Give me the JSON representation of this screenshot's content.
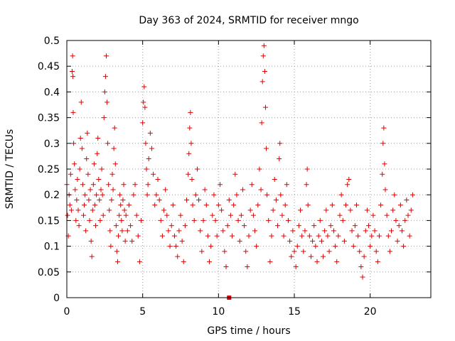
{
  "chart_data": {
    "type": "scatter",
    "title": "Day 363 of 2024, SRMTID for receiver mngo",
    "xlabel": "GPS time / hours",
    "ylabel": "SRMTID / TECUs",
    "xlim": [
      0,
      24
    ],
    "ylim": [
      0,
      0.5
    ],
    "xticks": [
      0,
      5,
      10,
      15,
      20
    ],
    "yticks": [
      0,
      0.05,
      0.1,
      0.15,
      0.2,
      0.25,
      0.3,
      0.35,
      0.4,
      0.45,
      0.5
    ],
    "xtick_labels": [
      "0",
      "5",
      "10",
      "15",
      "20"
    ],
    "ytick_labels": [
      "0",
      "0.05",
      "0.1",
      "0.15",
      "0.2",
      "0.25",
      "0.3",
      "0.35",
      "0.4",
      "0.45",
      "0.5"
    ],
    "grid": true,
    "marker": "plus",
    "color": "#e00000",
    "series": [
      {
        "name": "SRMTID",
        "points": [
          [
            0.0,
            0.22
          ],
          [
            0.05,
            0.16
          ],
          [
            0.1,
            0.12
          ],
          [
            0.15,
            0.2
          ],
          [
            0.2,
            0.18
          ],
          [
            0.25,
            0.24
          ],
          [
            0.3,
            0.17
          ],
          [
            0.35,
            0.44
          ],
          [
            0.38,
            0.47
          ],
          [
            0.4,
            0.43
          ],
          [
            0.42,
            0.36
          ],
          [
            0.45,
            0.3
          ],
          [
            0.5,
            0.26
          ],
          [
            0.55,
            0.21
          ],
          [
            0.6,
            0.15
          ],
          [
            0.65,
            0.19
          ],
          [
            0.7,
            0.23
          ],
          [
            0.75,
            0.17
          ],
          [
            0.8,
            0.14
          ],
          [
            0.85,
            0.25
          ],
          [
            0.9,
            0.31
          ],
          [
            0.95,
            0.38
          ],
          [
            1.0,
            0.29
          ],
          [
            1.05,
            0.22
          ],
          [
            1.1,
            0.16
          ],
          [
            1.15,
            0.18
          ],
          [
            1.2,
            0.2
          ],
          [
            1.25,
            0.13
          ],
          [
            1.3,
            0.27
          ],
          [
            1.35,
            0.32
          ],
          [
            1.4,
            0.24
          ],
          [
            1.45,
            0.19
          ],
          [
            1.5,
            0.15
          ],
          [
            1.55,
            0.21
          ],
          [
            1.6,
            0.11
          ],
          [
            1.65,
            0.08
          ],
          [
            1.7,
            0.17
          ],
          [
            1.75,
            0.22
          ],
          [
            1.8,
            0.26
          ],
          [
            1.85,
            0.18
          ],
          [
            1.9,
            0.14
          ],
          [
            1.95,
            0.2
          ],
          [
            2.0,
            0.28
          ],
          [
            2.05,
            0.31
          ],
          [
            2.1,
            0.23
          ],
          [
            2.15,
            0.19
          ],
          [
            2.2,
            0.15
          ],
          [
            2.25,
            0.21
          ],
          [
            2.3,
            0.25
          ],
          [
            2.35,
            0.2
          ],
          [
            2.4,
            0.16
          ],
          [
            2.45,
            0.35
          ],
          [
            2.5,
            0.4
          ],
          [
            2.55,
            0.43
          ],
          [
            2.6,
            0.47
          ],
          [
            2.65,
            0.38
          ],
          [
            2.7,
            0.3
          ],
          [
            2.75,
            0.22
          ],
          [
            2.8,
            0.17
          ],
          [
            2.85,
            0.13
          ],
          [
            2.9,
            0.1
          ],
          [
            2.95,
            0.19
          ],
          [
            3.0,
            0.24
          ],
          [
            3.05,
            0.21
          ],
          [
            3.1,
            0.29
          ],
          [
            3.15,
            0.33
          ],
          [
            3.2,
            0.26
          ],
          [
            3.25,
            0.14
          ],
          [
            3.3,
            0.09
          ],
          [
            3.35,
            0.07
          ],
          [
            3.4,
            0.12
          ],
          [
            3.45,
            0.16
          ],
          [
            3.5,
            0.2
          ],
          [
            3.55,
            0.18
          ],
          [
            3.6,
            0.15
          ],
          [
            3.65,
            0.13
          ],
          [
            3.7,
            0.19
          ],
          [
            3.75,
            0.22
          ],
          [
            3.8,
            0.17
          ],
          [
            3.85,
            0.11
          ],
          [
            3.9,
            0.16
          ],
          [
            4.0,
            0.13
          ],
          [
            4.1,
            0.18
          ],
          [
            4.2,
            0.14
          ],
          [
            4.3,
            0.11
          ],
          [
            4.4,
            0.2
          ],
          [
            4.5,
            0.22
          ],
          [
            4.6,
            0.16
          ],
          [
            4.7,
            0.12
          ],
          [
            4.8,
            0.07
          ],
          [
            4.9,
            0.15
          ],
          [
            5.0,
            0.34
          ],
          [
            5.05,
            0.38
          ],
          [
            5.1,
            0.41
          ],
          [
            5.15,
            0.37
          ],
          [
            5.2,
            0.3
          ],
          [
            5.25,
            0.25
          ],
          [
            5.3,
            0.2
          ],
          [
            5.35,
            0.22
          ],
          [
            5.4,
            0.27
          ],
          [
            5.5,
            0.32
          ],
          [
            5.6,
            0.29
          ],
          [
            5.7,
            0.24
          ],
          [
            5.8,
            0.18
          ],
          [
            5.9,
            0.2
          ],
          [
            6.0,
            0.23
          ],
          [
            6.1,
            0.19
          ],
          [
            6.2,
            0.15
          ],
          [
            6.3,
            0.12
          ],
          [
            6.4,
            0.17
          ],
          [
            6.5,
            0.21
          ],
          [
            6.6,
            0.16
          ],
          [
            6.7,
            0.13
          ],
          [
            6.8,
            0.1
          ],
          [
            6.9,
            0.14
          ],
          [
            7.0,
            0.18
          ],
          [
            7.1,
            0.12
          ],
          [
            7.2,
            0.1
          ],
          [
            7.3,
            0.08
          ],
          [
            7.4,
            0.13
          ],
          [
            7.5,
            0.16
          ],
          [
            7.6,
            0.11
          ],
          [
            7.7,
            0.07
          ],
          [
            7.8,
            0.14
          ],
          [
            7.9,
            0.19
          ],
          [
            8.0,
            0.24
          ],
          [
            8.05,
            0.28
          ],
          [
            8.1,
            0.33
          ],
          [
            8.15,
            0.36
          ],
          [
            8.2,
            0.3
          ],
          [
            8.25,
            0.23
          ],
          [
            8.3,
            0.18
          ],
          [
            8.4,
            0.15
          ],
          [
            8.5,
            0.2
          ],
          [
            8.6,
            0.25
          ],
          [
            8.7,
            0.19
          ],
          [
            8.8,
            0.13
          ],
          [
            8.9,
            0.09
          ],
          [
            9.0,
            0.15
          ],
          [
            9.1,
            0.21
          ],
          [
            9.2,
            0.18
          ],
          [
            9.3,
            0.12
          ],
          [
            9.4,
            0.07
          ],
          [
            9.5,
            0.1
          ],
          [
            9.6,
            0.16
          ],
          [
            9.7,
            0.2
          ],
          [
            9.8,
            0.15
          ],
          [
            9.9,
            0.12
          ],
          [
            10.0,
            0.18
          ],
          [
            10.1,
            0.22
          ],
          [
            10.2,
            0.17
          ],
          [
            10.3,
            0.13
          ],
          [
            10.4,
            0.09
          ],
          [
            10.5,
            0.06
          ],
          [
            10.6,
            0.14
          ],
          [
            10.7,
            0.19
          ],
          [
            10.8,
            0.16
          ],
          [
            10.9,
            0.12
          ],
          [
            11.0,
            0.18
          ],
          [
            11.1,
            0.24
          ],
          [
            11.2,
            0.2
          ],
          [
            11.3,
            0.15
          ],
          [
            11.4,
            0.11
          ],
          [
            11.5,
            0.16
          ],
          [
            11.6,
            0.21
          ],
          [
            11.7,
            0.14
          ],
          [
            11.8,
            0.09
          ],
          [
            11.9,
            0.06
          ],
          [
            12.0,
            0.12
          ],
          [
            12.1,
            0.17
          ],
          [
            12.2,
            0.22
          ],
          [
            12.3,
            0.16
          ],
          [
            12.4,
            0.13
          ],
          [
            12.5,
            0.1
          ],
          [
            12.6,
            0.18
          ],
          [
            12.7,
            0.25
          ],
          [
            12.8,
            0.21
          ],
          [
            12.85,
            0.34
          ],
          [
            12.9,
            0.42
          ],
          [
            12.95,
            0.47
          ],
          [
            13.0,
            0.49
          ],
          [
            13.05,
            0.44
          ],
          [
            13.1,
            0.37
          ],
          [
            13.15,
            0.29
          ],
          [
            13.2,
            0.2
          ],
          [
            13.3,
            0.15
          ],
          [
            13.4,
            0.07
          ],
          [
            13.5,
            0.12
          ],
          [
            13.6,
            0.17
          ],
          [
            13.7,
            0.23
          ],
          [
            13.8,
            0.19
          ],
          [
            13.9,
            0.14
          ],
          [
            14.0,
            0.27
          ],
          [
            14.05,
            0.3
          ],
          [
            14.1,
            0.2
          ],
          [
            14.2,
            0.16
          ],
          [
            14.3,
            0.12
          ],
          [
            14.4,
            0.18
          ],
          [
            14.5,
            0.22
          ],
          [
            14.6,
            0.15
          ],
          [
            14.7,
            0.11
          ],
          [
            14.8,
            0.08
          ],
          [
            14.9,
            0.13
          ],
          [
            15.0,
            0.09
          ],
          [
            15.1,
            0.06
          ],
          [
            15.2,
            0.1
          ],
          [
            15.3,
            0.14
          ],
          [
            15.4,
            0.17
          ],
          [
            15.5,
            0.12
          ],
          [
            15.6,
            0.09
          ],
          [
            15.7,
            0.13
          ],
          [
            15.8,
            0.22
          ],
          [
            15.85,
            0.25
          ],
          [
            15.9,
            0.18
          ],
          [
            16.0,
            0.12
          ],
          [
            16.1,
            0.08
          ],
          [
            16.2,
            0.11
          ],
          [
            16.3,
            0.14
          ],
          [
            16.4,
            0.1
          ],
          [
            16.5,
            0.07
          ],
          [
            16.6,
            0.12
          ],
          [
            16.7,
            0.15
          ],
          [
            16.8,
            0.11
          ],
          [
            16.9,
            0.08
          ],
          [
            17.0,
            0.13
          ],
          [
            17.1,
            0.17
          ],
          [
            17.2,
            0.12
          ],
          [
            17.3,
            0.09
          ],
          [
            17.4,
            0.14
          ],
          [
            17.5,
            0.18
          ],
          [
            17.6,
            0.13
          ],
          [
            17.7,
            0.1
          ],
          [
            17.8,
            0.07
          ],
          [
            17.9,
            0.12
          ],
          [
            18.0,
            0.16
          ],
          [
            18.1,
            0.2
          ],
          [
            18.2,
            0.15
          ],
          [
            18.3,
            0.11
          ],
          [
            18.4,
            0.18
          ],
          [
            18.5,
            0.22
          ],
          [
            18.6,
            0.23
          ],
          [
            18.7,
            0.17
          ],
          [
            18.8,
            0.13
          ],
          [
            18.9,
            0.1
          ],
          [
            19.0,
            0.14
          ],
          [
            19.1,
            0.18
          ],
          [
            19.2,
            0.12
          ],
          [
            19.3,
            0.09
          ],
          [
            19.4,
            0.06
          ],
          [
            19.5,
            0.04
          ],
          [
            19.6,
            0.08
          ],
          [
            19.7,
            0.13
          ],
          [
            19.8,
            0.17
          ],
          [
            19.9,
            0.14
          ],
          [
            20.0,
            0.1
          ],
          [
            20.1,
            0.12
          ],
          [
            20.2,
            0.16
          ],
          [
            20.3,
            0.13
          ],
          [
            20.4,
            0.09
          ],
          [
            20.5,
            0.07
          ],
          [
            20.6,
            0.12
          ],
          [
            20.7,
            0.18
          ],
          [
            20.8,
            0.24
          ],
          [
            20.85,
            0.3
          ],
          [
            20.9,
            0.33
          ],
          [
            20.95,
            0.26
          ],
          [
            21.0,
            0.21
          ],
          [
            21.1,
            0.16
          ],
          [
            21.2,
            0.12
          ],
          [
            21.3,
            0.09
          ],
          [
            21.4,
            0.13
          ],
          [
            21.5,
            0.17
          ],
          [
            21.6,
            0.2
          ],
          [
            21.7,
            0.15
          ],
          [
            21.8,
            0.11
          ],
          [
            21.9,
            0.14
          ],
          [
            22.0,
            0.18
          ],
          [
            22.1,
            0.13
          ],
          [
            22.2,
            0.1
          ],
          [
            22.3,
            0.15
          ],
          [
            22.4,
            0.19
          ],
          [
            22.5,
            0.16
          ],
          [
            22.6,
            0.12
          ],
          [
            22.7,
            0.17
          ],
          [
            22.8,
            0.2
          ]
        ]
      }
    ],
    "outlier_marker": [
      10.7,
      0.0
    ]
  }
}
